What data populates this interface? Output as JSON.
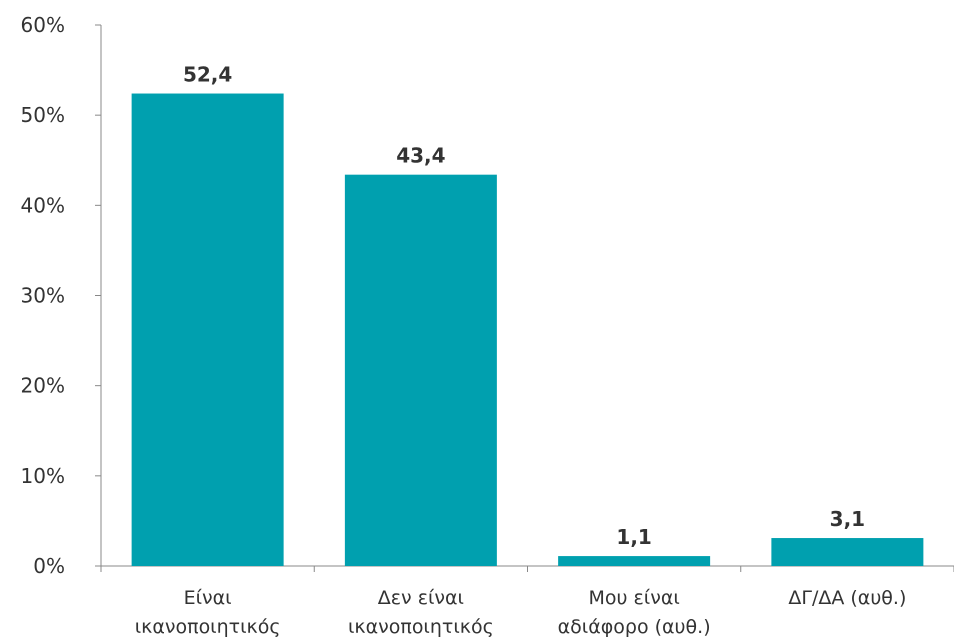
{
  "chart_data": {
    "type": "bar",
    "categories": [
      [
        "Είναι",
        "ικανοποιητικός"
      ],
      [
        "Δεν είναι",
        "ικανοποιητικός"
      ],
      [
        "Μου είναι",
        "αδιάφορο (αυθ.)"
      ],
      [
        "ΔΓ/ΔΑ (αυθ.)"
      ]
    ],
    "values": [
      52.4,
      43.4,
      1.1,
      3.1
    ],
    "value_labels": [
      "52,4",
      "43,4",
      "1,1",
      "3,1"
    ],
    "ylim": [
      0,
      60
    ],
    "yticks": [
      0,
      10,
      20,
      30,
      40,
      50,
      60
    ],
    "ytick_labels": [
      "0%",
      "10%",
      "20%",
      "30%",
      "40%",
      "50%",
      "60%"
    ],
    "bar_color": "#00A0AF",
    "axis_color": "#888888",
    "grid": false,
    "legend": "none"
  }
}
